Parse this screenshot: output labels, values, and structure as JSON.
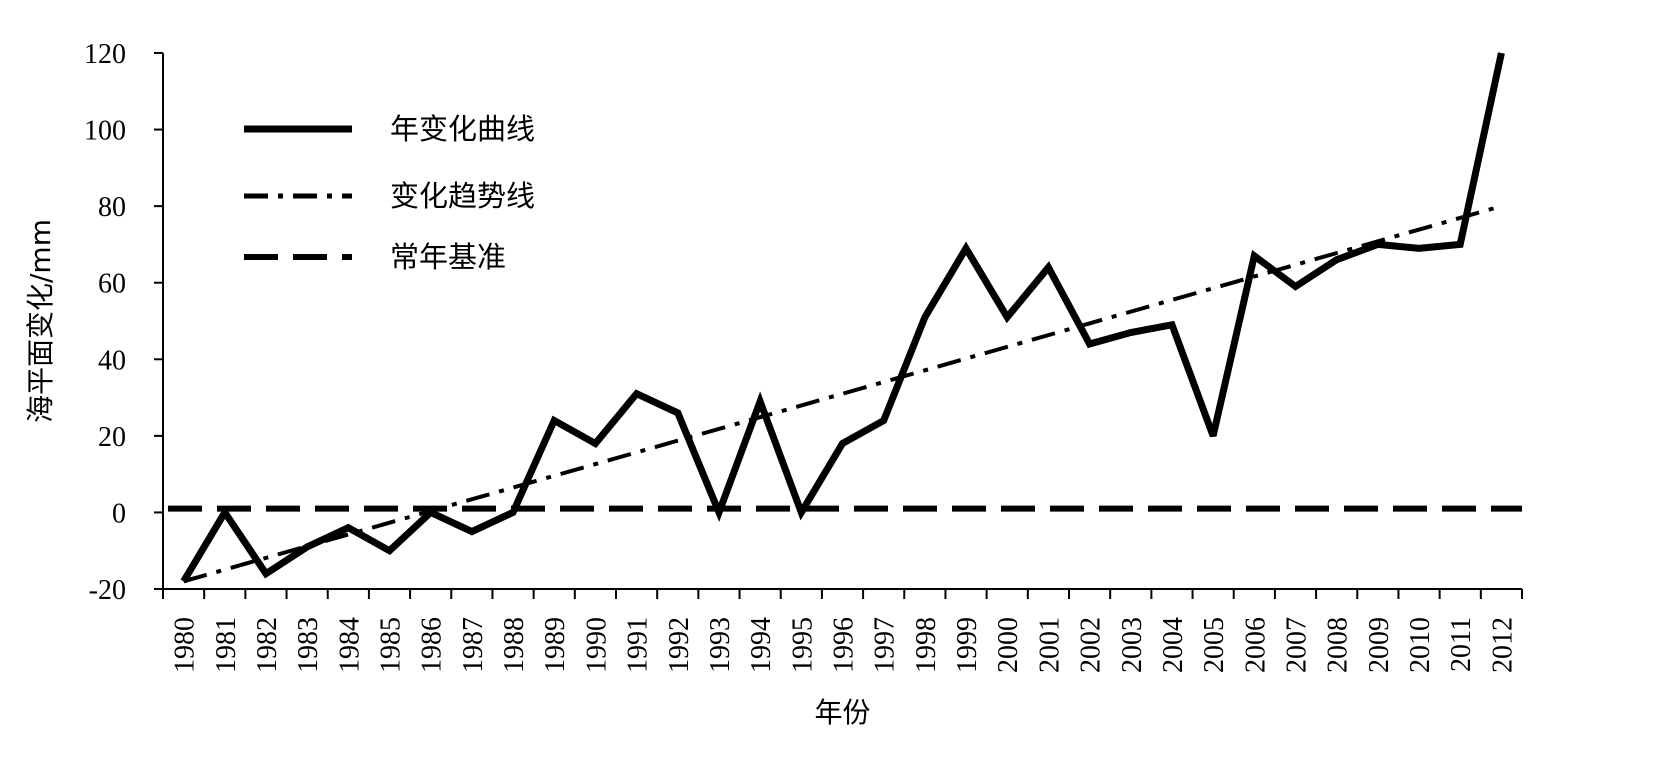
{
  "chart_data": {
    "type": "line",
    "title": "",
    "xlabel": "年份",
    "ylabel": "海平面变化/mm",
    "ylim": [
      -20,
      120
    ],
    "yticks": [
      -20,
      0,
      20,
      40,
      60,
      80,
      100,
      120
    ],
    "grid": false,
    "legend_position": "top-left",
    "categories": [
      "1980",
      "1981",
      "1982",
      "1983",
      "1984",
      "1985",
      "1986",
      "1987",
      "1988",
      "1989",
      "1990",
      "1991",
      "1992",
      "1993",
      "1994",
      "1995",
      "1996",
      "1997",
      "1998",
      "1999",
      "2000",
      "2001",
      "2002",
      "2003",
      "2004",
      "2005",
      "2006",
      "2007",
      "2008",
      "2009",
      "2010",
      "2011",
      "2012"
    ],
    "series": [
      {
        "name": "年变化曲线",
        "style": "solid",
        "values": [
          -18,
          0,
          -16,
          -9,
          -4,
          -10,
          0,
          -5,
          0,
          24,
          18,
          31,
          26,
          0,
          29,
          0,
          18,
          24,
          51,
          69,
          51,
          64,
          44,
          47,
          49,
          20,
          67,
          59,
          66,
          70,
          69,
          70,
          120
        ]
      },
      {
        "name": "变化趋势线",
        "style": "dash-dot",
        "start": [
          1980,
          -18
        ],
        "end": [
          2012,
          80
        ]
      },
      {
        "name": "常年基准",
        "style": "dashed",
        "value": 1
      }
    ],
    "colors": {
      "line": "#000000",
      "axis": "#000000"
    }
  }
}
